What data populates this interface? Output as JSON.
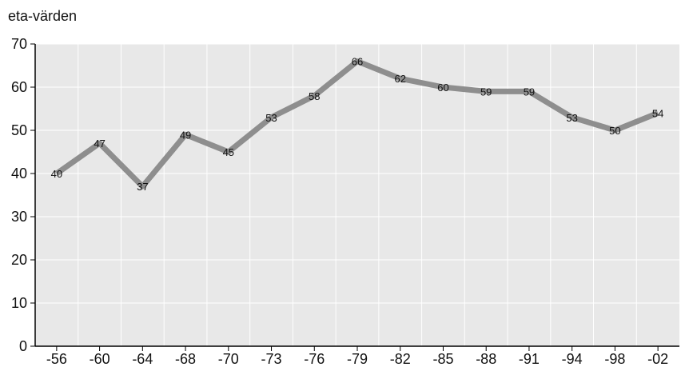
{
  "chart_data": {
    "type": "line",
    "ylabel": "eta-värden",
    "categories": [
      "-56",
      "-60",
      "-64",
      "-68",
      "-70",
      "-73",
      "-76",
      "-79",
      "-82",
      "-85",
      "-88",
      "-91",
      "-94",
      "-98",
      "-02"
    ],
    "y_ticks": [
      "0",
      "10",
      "20",
      "30",
      "40",
      "50",
      "60",
      "70"
    ],
    "ylim": [
      0,
      70
    ],
    "grid": true,
    "series": [
      {
        "values": [
          40,
          47,
          37,
          49,
          45,
          53,
          58,
          66,
          62,
          60,
          59,
          59,
          53,
          50,
          54
        ],
        "labels": [
          "40",
          "47",
          "37",
          "49",
          "45",
          "53",
          "58",
          "66",
          "62",
          "60",
          "59",
          "59",
          "53",
          "50",
          "54"
        ]
      }
    ],
    "colors": {
      "plot_background": "#e8e8e8",
      "gridlines": "#ffffff",
      "line": "#8e8e8e",
      "axis": "#000000"
    }
  }
}
